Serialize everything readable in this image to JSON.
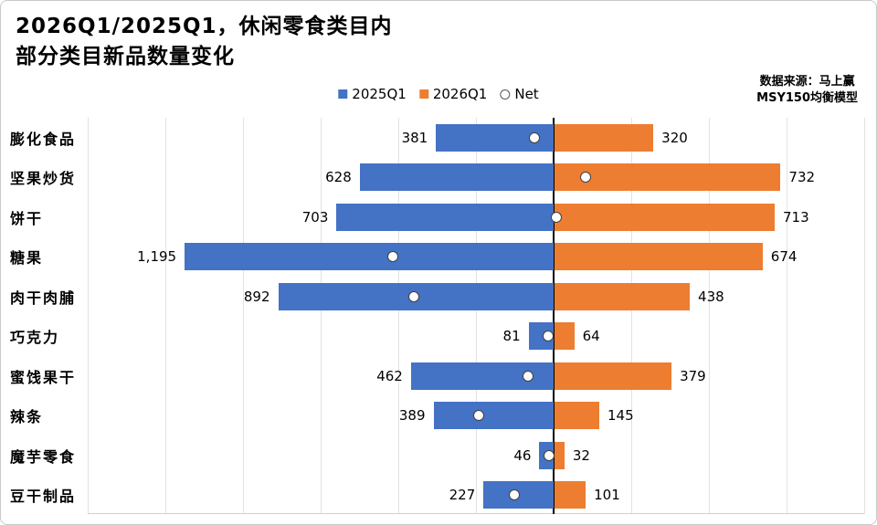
{
  "title": {
    "line1": "2026Q1/2025Q1，休闲零食类目内",
    "line2": "部分类目新品数量变化"
  },
  "source": {
    "line1": "数据来源：马上赢",
    "line2": "MSY150均衡模型"
  },
  "legend": {
    "items": [
      {
        "label": "2025Q1",
        "color": "#4472C4",
        "shape": "square"
      },
      {
        "label": "2026Q1",
        "color": "#ED7D31",
        "shape": "square"
      },
      {
        "label": "Net",
        "color": "#FFFFFF",
        "shape": "circle"
      }
    ]
  },
  "colors": {
    "blue": "#4472C4",
    "orange": "#ED7D31",
    "axis": "#000000",
    "grid": "#e2e2e2"
  },
  "chart_data": {
    "type": "bar",
    "variant": "diverging-horizontal",
    "title": "2026Q1/2025Q1，休闲零食类目内 部分类目新品数量变化",
    "categories": [
      "膨化食品",
      "坚果炒货",
      "饼干",
      "糖果",
      "肉干肉脯",
      "巧克力",
      "蜜饯果干",
      "辣条",
      "魔芋零食",
      "豆干制品"
    ],
    "series": [
      {
        "name": "2025Q1",
        "side": "left",
        "color": "#4472C4",
        "values": [
          381,
          628,
          703,
          1195,
          892,
          81,
          462,
          389,
          46,
          227
        ],
        "labels": [
          "381",
          "628",
          "703",
          "1,195",
          "892",
          "81",
          "462",
          "389",
          "46",
          "227"
        ]
      },
      {
        "name": "2026Q1",
        "side": "right",
        "color": "#ED7D31",
        "values": [
          320,
          732,
          713,
          674,
          438,
          64,
          379,
          145,
          32,
          101
        ],
        "labels": [
          "320",
          "732",
          "713",
          "674",
          "438",
          "64",
          "379",
          "145",
          "32",
          "101"
        ]
      }
    ],
    "net": {
      "name": "Net",
      "marker": "white-circle",
      "values": [
        -61,
        104,
        10,
        -521,
        -454,
        -17,
        -83,
        -244,
        -14,
        -126
      ]
    },
    "axis": {
      "center_value": 0,
      "left_max": 1500,
      "right_max": 1010,
      "grid_step_units": 250,
      "gridlines": true,
      "legend_position": "top-center"
    }
  }
}
